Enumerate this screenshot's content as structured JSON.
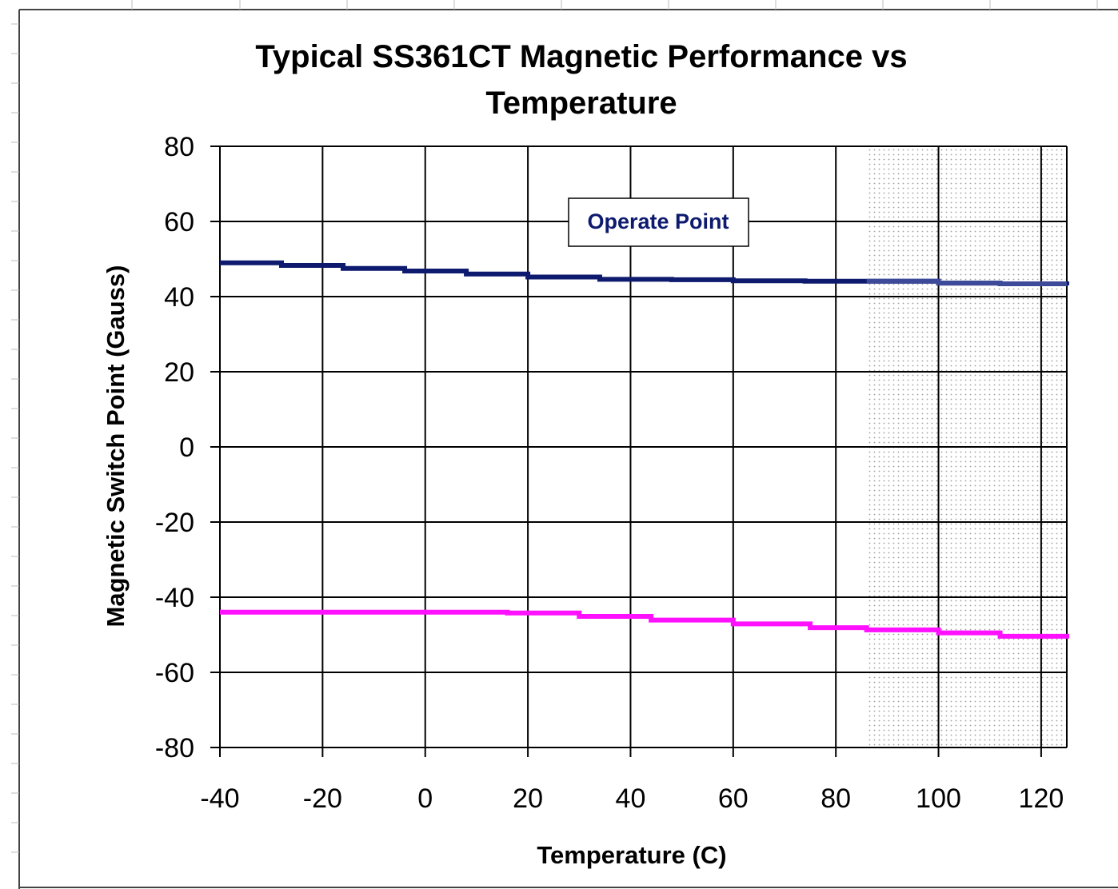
{
  "chart_data": {
    "type": "line",
    "title_lines": [
      "Typical SS361CT Magnetic Performance vs",
      "Temperature"
    ],
    "xlabel": "Temperature (C)",
    "ylabel": "Magnetic Switch Point (Gauss)",
    "xlim": [
      -40,
      125
    ],
    "ylim": [
      -80,
      80
    ],
    "x_ticks": [
      "-40",
      "-20",
      "0",
      "20",
      "40",
      "60",
      "80",
      "100",
      "120"
    ],
    "y_ticks": [
      "80",
      "60",
      "40",
      "20",
      "0",
      "-20",
      "-40",
      "-60",
      "-80"
    ],
    "grid": true,
    "shaded_region_x": [
      86,
      125
    ],
    "annotation": "Operate Point",
    "series": [
      {
        "name": "Operate Point",
        "color": "#0d1a6e",
        "x": [
          -40,
          -28,
          -16,
          -4,
          8,
          20,
          34,
          48,
          60,
          74,
          86,
          100,
          112,
          125
        ],
        "y": [
          49,
          48.3,
          47.5,
          46.8,
          46,
          45.2,
          44.6,
          44.5,
          44.2,
          44.1,
          44.1,
          43.6,
          43.4,
          43
        ]
      },
      {
        "name": "",
        "color": "#ff10ff",
        "x": [
          -40,
          -20,
          0,
          16,
          30,
          44,
          60,
          75,
          86,
          100,
          112,
          125
        ],
        "y": [
          -44,
          -44,
          -44,
          -44.2,
          -45.1,
          -46.1,
          -47.1,
          -48.1,
          -48.7,
          -49.5,
          -50.4,
          -51
        ]
      }
    ],
    "colors": {
      "shade_dot": "#9e9e9e",
      "annotation_text": "#0d1a6e",
      "grid": "#000000"
    }
  }
}
